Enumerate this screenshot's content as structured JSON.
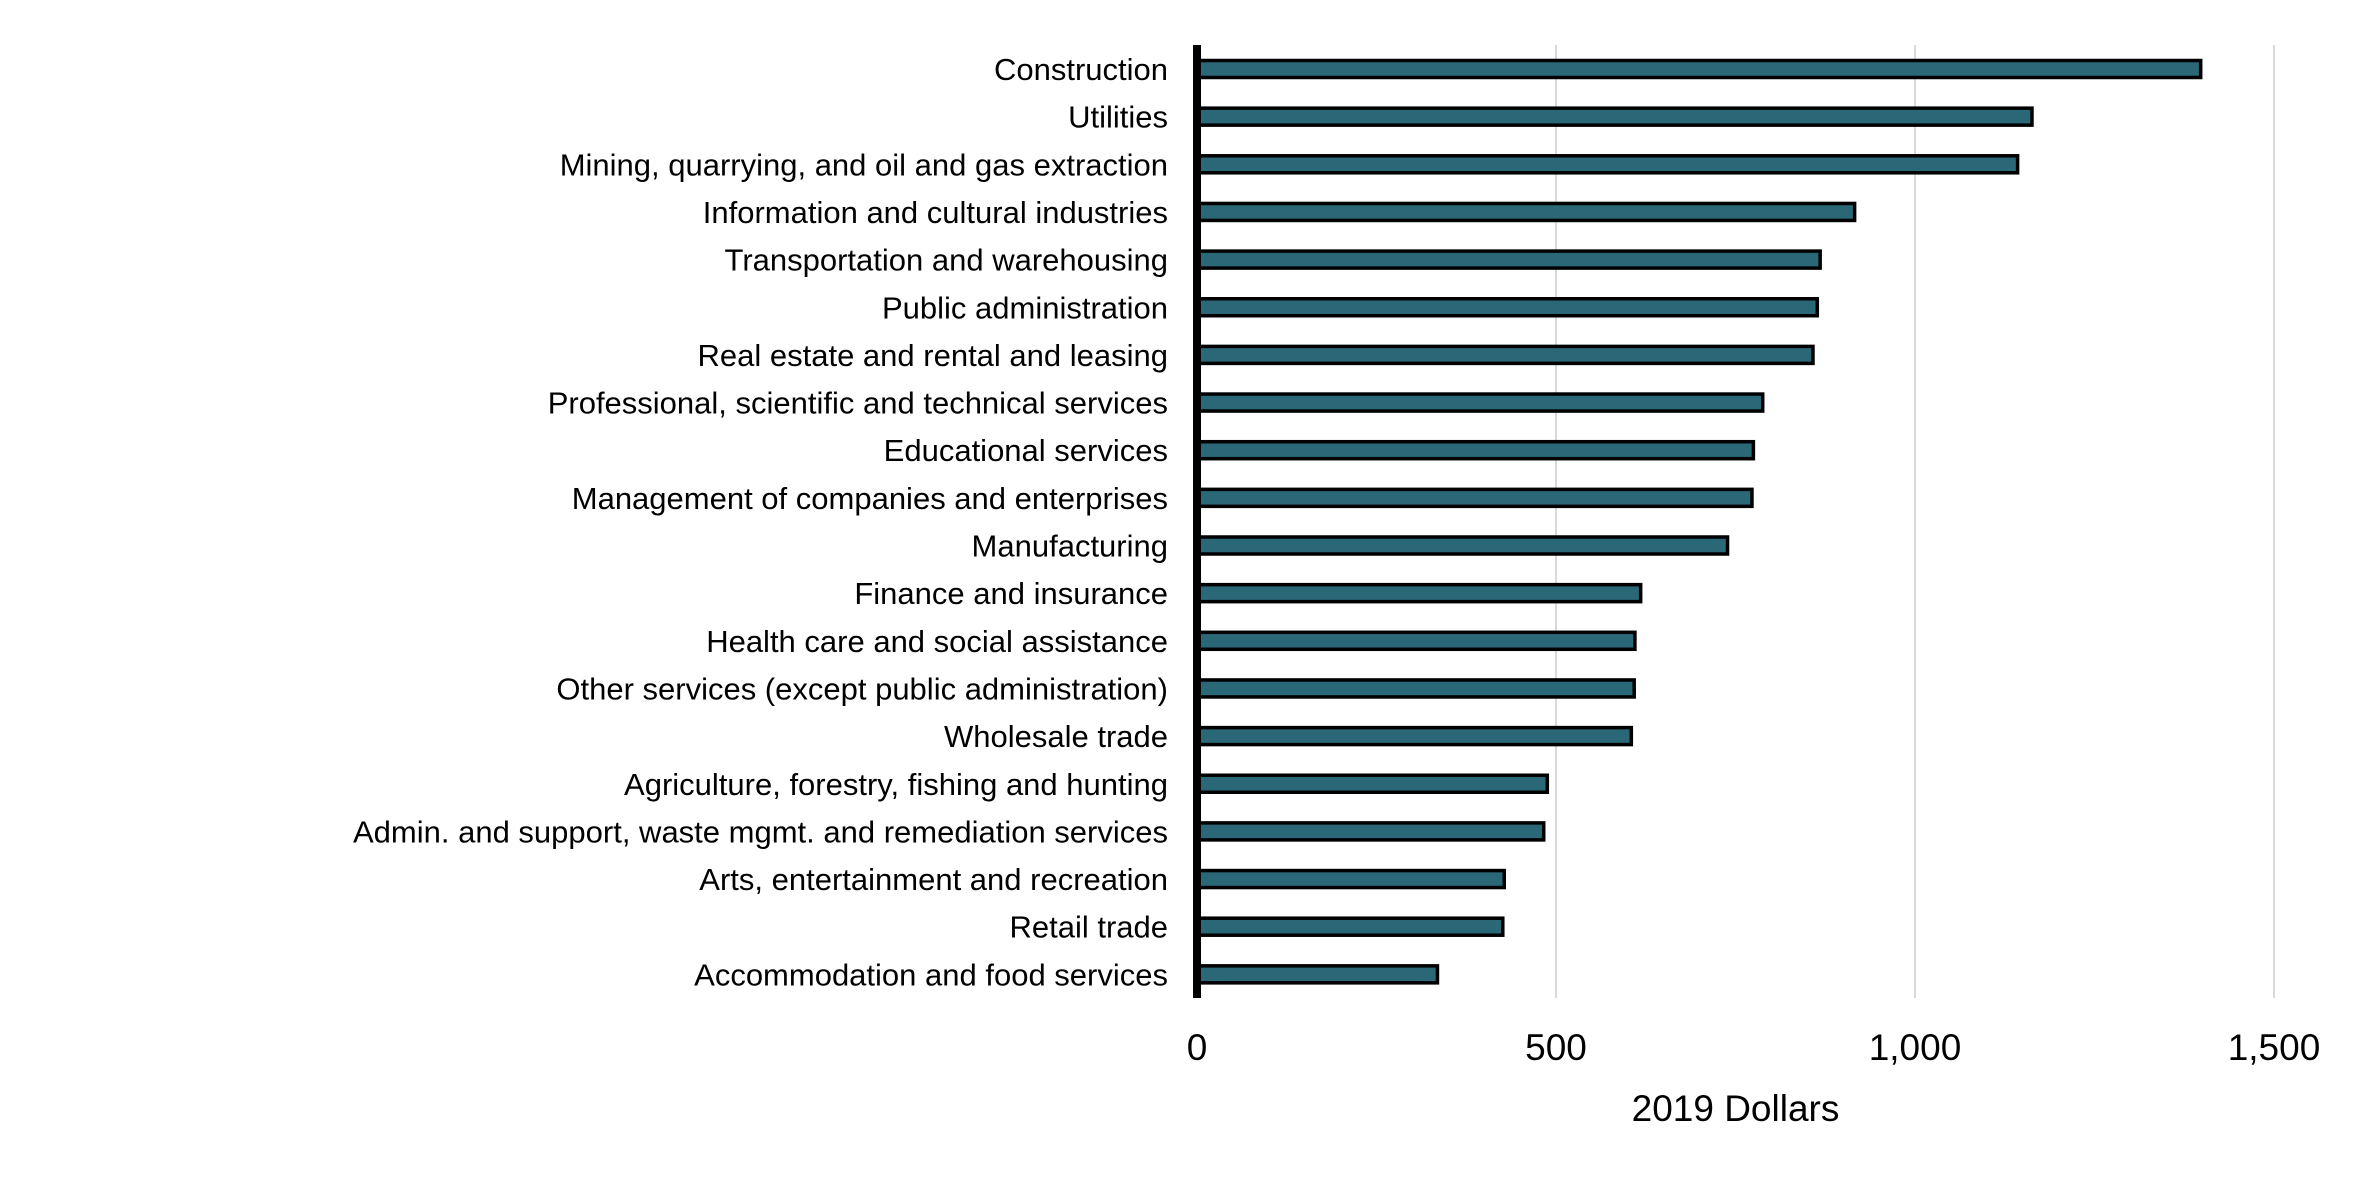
{
  "chart_data": {
    "type": "bar",
    "orientation": "horizontal",
    "title": "",
    "xlabel": "2019 Dollars",
    "ylabel": "",
    "xlim": [
      0,
      1500
    ],
    "xticks": [
      0,
      500,
      1000,
      1500
    ],
    "xtick_labels": [
      "0",
      "500",
      "1,000",
      "1,500"
    ],
    "grid": "vertical",
    "legend": "none",
    "bar_color": "#2a6777",
    "bar_edge_color": "#000000",
    "grid_color": "#d9d9d9",
    "categories": [
      "Construction",
      "Utilities",
      "Mining, quarrying, and oil and gas extraction",
      "Information and cultural industries",
      "Transportation and warehousing",
      "Public administration",
      "Real estate and rental and leasing",
      "Professional, scientific and technical services",
      "Educational services",
      "Management of companies and enterprises",
      "Manufacturing",
      "Finance and insurance",
      "Health care and social assistance",
      "Other services (except public administration)",
      "Wholesale trade",
      "Agriculture, forestry, fishing and hunting",
      "Admin. and support, waste mgmt. and remediation services",
      "Arts, entertainment and recreation",
      "Retail trade",
      "Accommodation and food services"
    ],
    "values": [
      1400,
      1165,
      1145,
      918,
      870,
      866,
      860,
      790,
      777,
      775,
      741,
      620,
      612,
      611,
      607,
      490,
      485,
      430,
      428,
      337
    ]
  }
}
